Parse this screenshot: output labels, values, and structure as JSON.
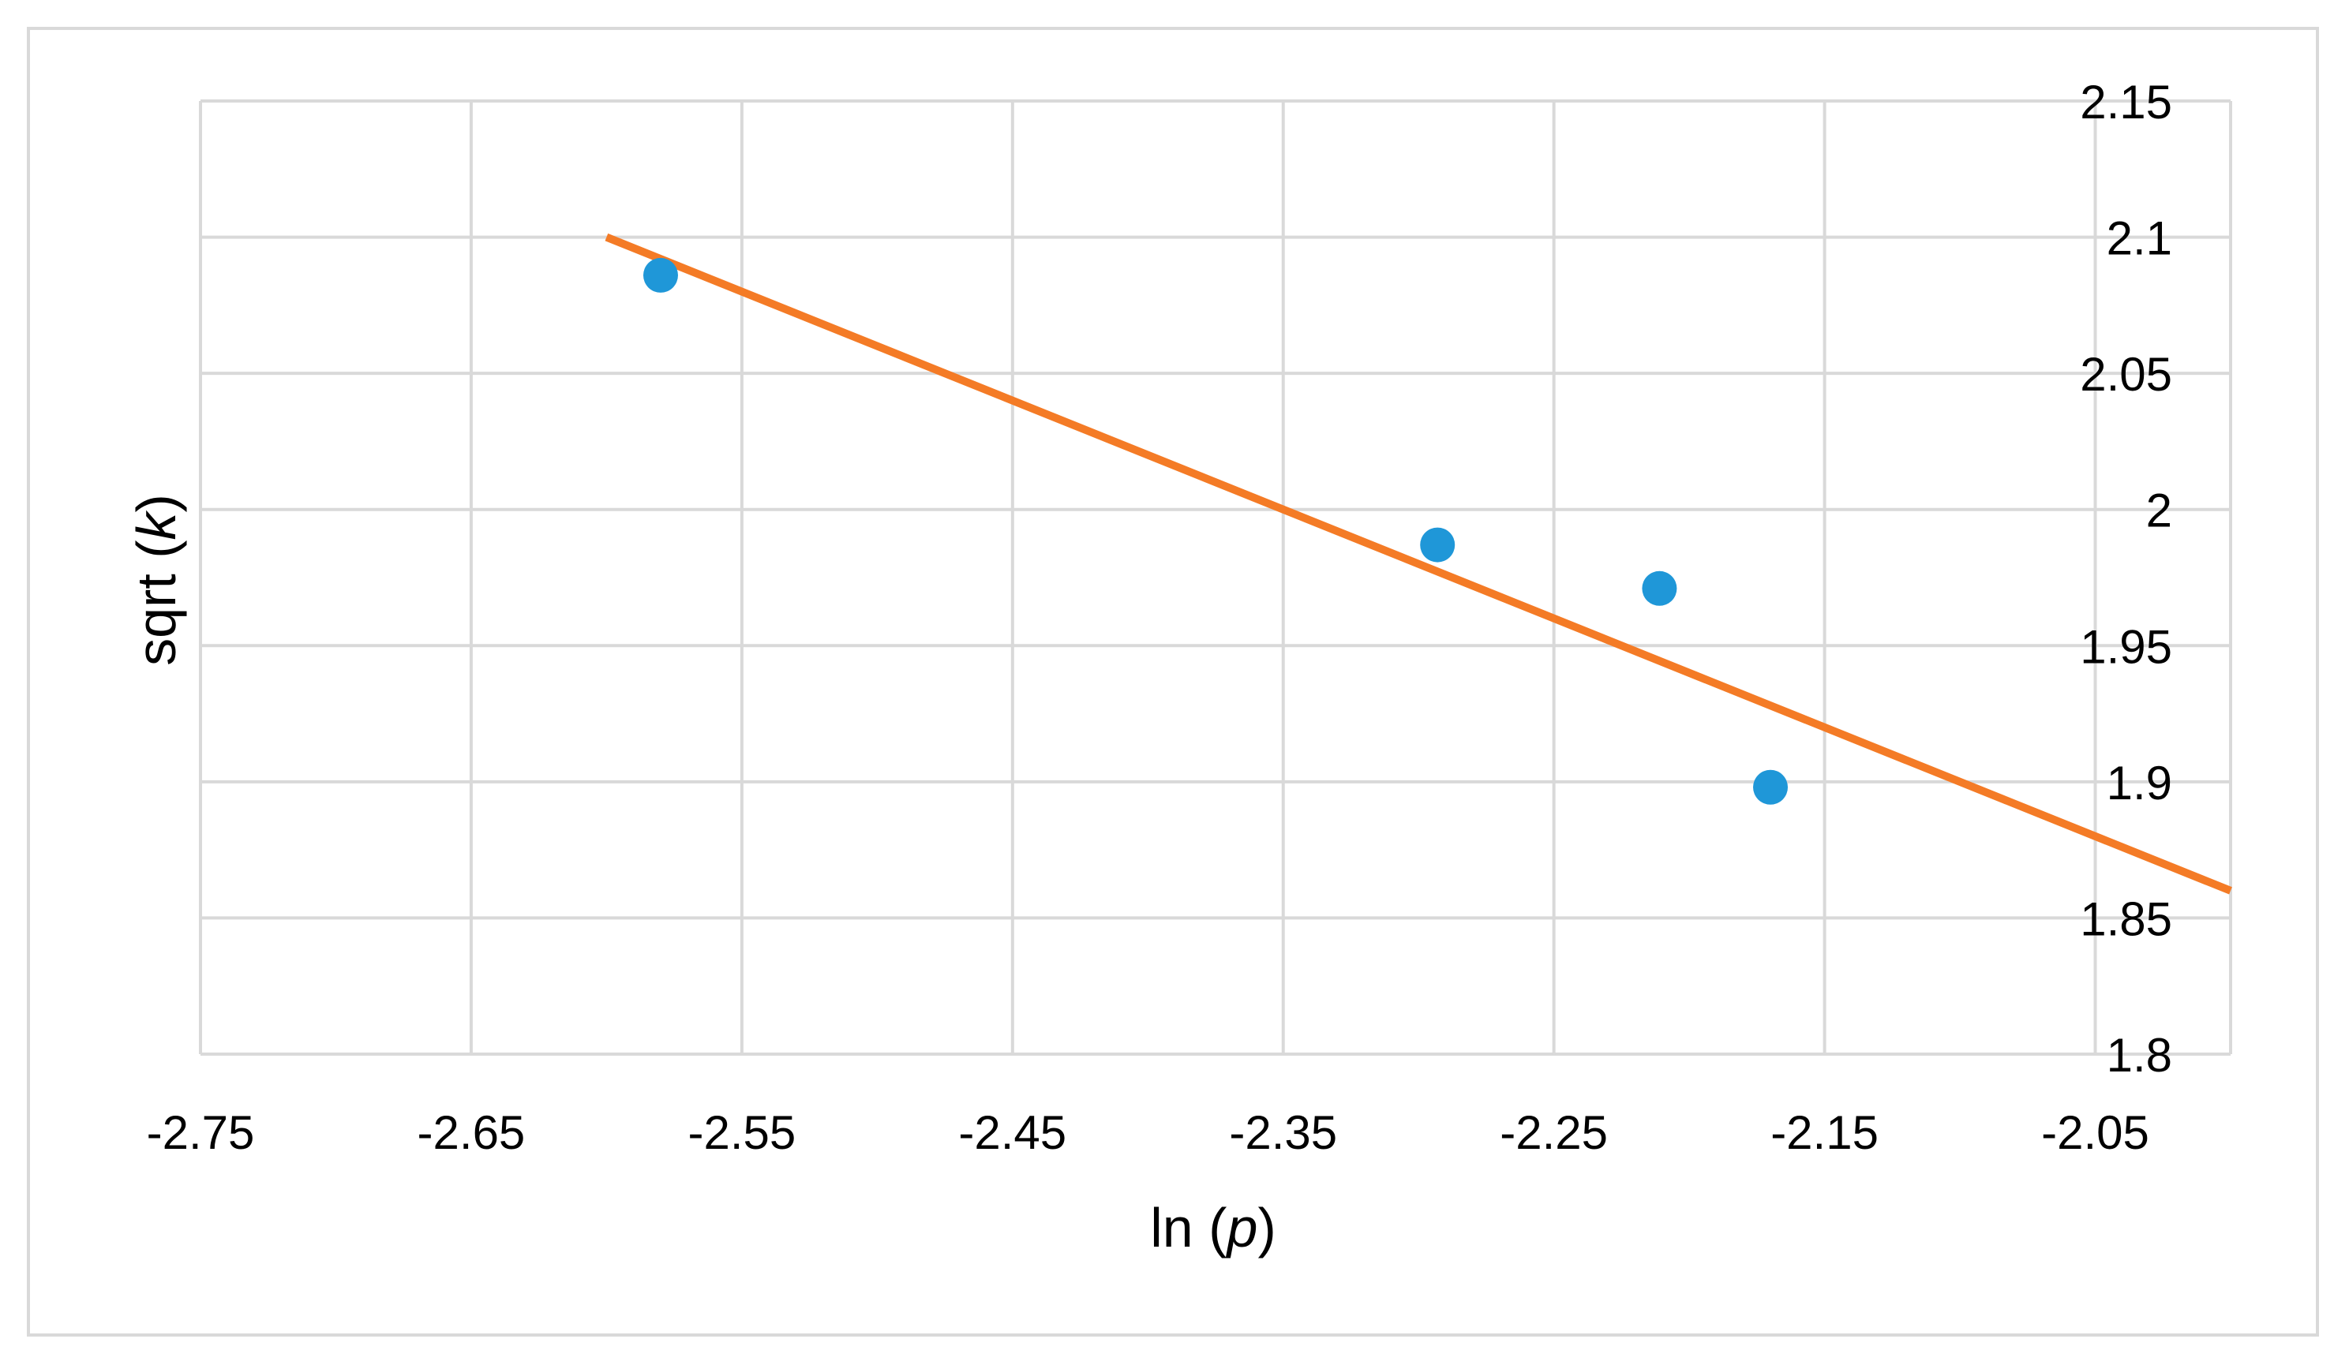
{
  "chart_data": {
    "type": "scatter",
    "title": "",
    "xlabel": {
      "prefix": "ln (",
      "var": "p",
      "suffix": ")"
    },
    "ylabel": {
      "prefix": "sqrt (",
      "var": "k",
      "suffix": ")"
    },
    "xlim": [
      -2.75,
      -2.0
    ],
    "ylim": [
      1.8,
      2.15
    ],
    "x_ticks": [
      -2.75,
      -2.65,
      -2.55,
      -2.45,
      -2.35,
      -2.25,
      -2.15,
      -2.05
    ],
    "x_tick_labels": [
      "-2.75",
      "-2.65",
      "-2.55",
      "-2.45",
      "-2.35",
      "-2.25",
      "-2.15",
      "-2.05"
    ],
    "y_ticks": [
      1.8,
      1.85,
      1.9,
      1.95,
      2.0,
      2.05,
      2.1,
      2.15
    ],
    "y_tick_labels": [
      "1.8",
      "1.85",
      "1.9",
      "1.95",
      "2",
      "2.05",
      "2.1",
      "2.15"
    ],
    "y_axis_position": "right",
    "grid": true,
    "legend": "none",
    "series": [
      {
        "kind": "points",
        "color": "#1F97D8",
        "points": [
          {
            "x": -2.58,
            "y": 2.086
          },
          {
            "x": -2.293,
            "y": 1.987
          },
          {
            "x": -2.211,
            "y": 1.971
          },
          {
            "x": -2.17,
            "y": 1.898
          }
        ]
      },
      {
        "kind": "trendline",
        "color": "#F47B26",
        "points": [
          {
            "x": -2.6,
            "y": 2.1
          },
          {
            "x": -2.0,
            "y": 1.86
          }
        ]
      }
    ],
    "colors": {
      "grid": "#D9D9D9",
      "frame": "#D9D9D9",
      "text": "#000000"
    }
  }
}
